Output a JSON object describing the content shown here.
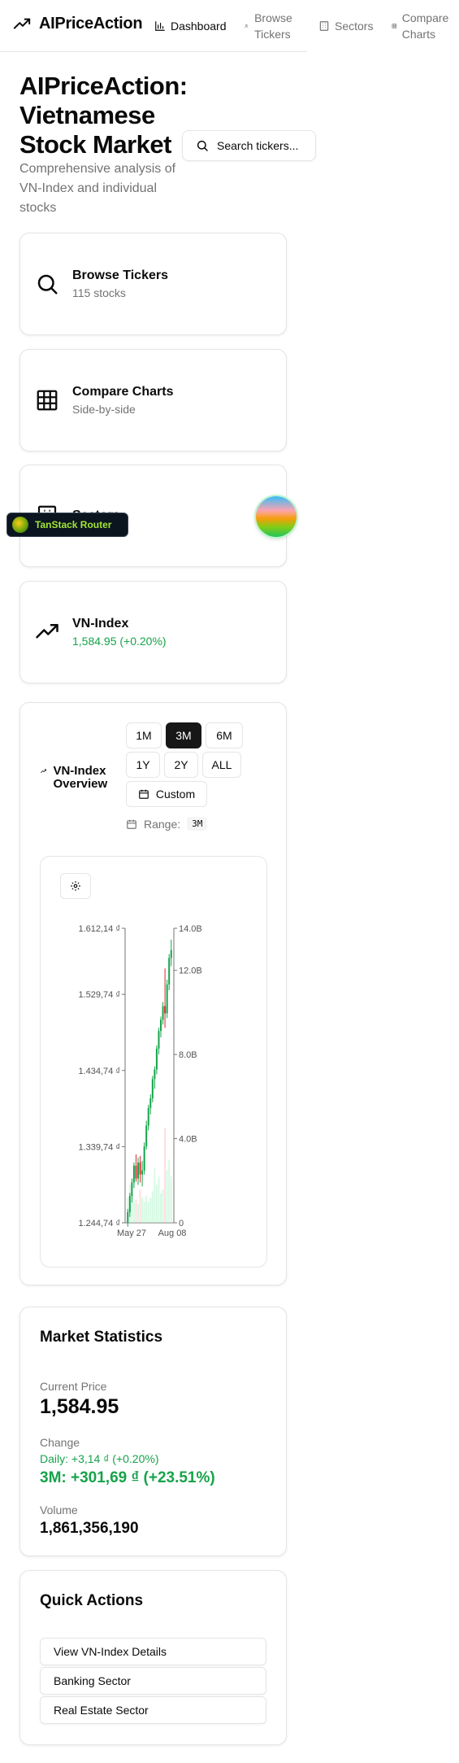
{
  "header": {
    "brand": "AIPriceAction",
    "nav": [
      {
        "label": "Dashboard",
        "icon": "bar-chart-icon"
      },
      {
        "label": "Browse Tickers",
        "icon": "users-icon"
      },
      {
        "label": "Sectors",
        "icon": "building-icon"
      },
      {
        "label": "Compare Charts",
        "icon": "grid-icon"
      }
    ]
  },
  "hero": {
    "title": "AIPriceAction: Vietnamese Stock Market",
    "subtitle": "Comprehensive analysis of VN-Index and individual stocks",
    "search_label": "Search tickers..."
  },
  "cards": {
    "browse": {
      "title": "Browse Tickers",
      "sub": "115 stocks"
    },
    "compare": {
      "title": "Compare Charts",
      "sub": "Side-by-side"
    },
    "sectors": {
      "title": "Sectors",
      "sub": ""
    },
    "vnindex": {
      "title": "VN-Index",
      "sub": "1,584.95 (+0.20%)"
    }
  },
  "devtools": {
    "tanstack": "TanStack Router"
  },
  "overview": {
    "title": "VN-Index Overview",
    "ranges": [
      "1M",
      "3M",
      "6M",
      "1Y",
      "2Y",
      "ALL"
    ],
    "active_range": "3M",
    "custom_label": "Custom",
    "range_label": "Range:",
    "range_value": "3M"
  },
  "chart_data": {
    "type": "candlestick",
    "y_ticks": [
      "1.612,14 ₫",
      "1.529,74 ₫",
      "1.434,74 ₫",
      "1.339,74 ₫",
      "1.244,74 ₫"
    ],
    "y_tick_values": [
      1612.14,
      1529.74,
      1434.74,
      1339.74,
      1244.74
    ],
    "volume_ticks": [
      "14.0B",
      "12.0B",
      "8.0B",
      "4.0B",
      "0"
    ],
    "volume_tick_values": [
      14,
      12,
      8,
      4,
      0
    ],
    "x_ticks": [
      "May 27",
      "Aug 08"
    ],
    "ylim": [
      1244.74,
      1612.14
    ],
    "volume_ylim": [
      0,
      14
    ],
    "candles": [
      {
        "o": 1245,
        "h": 1262,
        "l": 1240,
        "c": 1258,
        "v": 1.2
      },
      {
        "o": 1258,
        "h": 1282,
        "l": 1252,
        "c": 1278,
        "v": 1.8
      },
      {
        "o": 1278,
        "h": 1300,
        "l": 1270,
        "c": 1295,
        "v": 1.5
      },
      {
        "o": 1295,
        "h": 1320,
        "l": 1288,
        "c": 1316,
        "v": 1.0
      },
      {
        "o": 1316,
        "h": 1330,
        "l": 1296,
        "c": 1300,
        "v": 1.1
      },
      {
        "o": 1300,
        "h": 1326,
        "l": 1292,
        "c": 1320,
        "v": 0.9
      },
      {
        "o": 1320,
        "h": 1328,
        "l": 1295,
        "c": 1305,
        "v": 1.6
      },
      {
        "o": 1305,
        "h": 1322,
        "l": 1290,
        "c": 1310,
        "v": 1.2
      },
      {
        "o": 1310,
        "h": 1345,
        "l": 1305,
        "c": 1340,
        "v": 1.0
      },
      {
        "o": 1340,
        "h": 1372,
        "l": 1336,
        "c": 1366,
        "v": 1.3
      },
      {
        "o": 1366,
        "h": 1392,
        "l": 1360,
        "c": 1388,
        "v": 1.0
      },
      {
        "o": 1388,
        "h": 1405,
        "l": 1380,
        "c": 1400,
        "v": 1.2
      },
      {
        "o": 1400,
        "h": 1428,
        "l": 1395,
        "c": 1424,
        "v": 1.5
      },
      {
        "o": 1424,
        "h": 1440,
        "l": 1412,
        "c": 1436,
        "v": 2.6
      },
      {
        "o": 1436,
        "h": 1466,
        "l": 1430,
        "c": 1462,
        "v": 1.8
      },
      {
        "o": 1462,
        "h": 1488,
        "l": 1455,
        "c": 1484,
        "v": 2.2
      },
      {
        "o": 1484,
        "h": 1502,
        "l": 1476,
        "c": 1498,
        "v": 1.4
      },
      {
        "o": 1498,
        "h": 1520,
        "l": 1492,
        "c": 1515,
        "v": 1.6
      },
      {
        "o": 1515,
        "h": 1562,
        "l": 1488,
        "c": 1506,
        "v": 4.5
      },
      {
        "o": 1506,
        "h": 1548,
        "l": 1500,
        "c": 1542,
        "v": 2.5
      },
      {
        "o": 1542,
        "h": 1580,
        "l": 1535,
        "c": 1575,
        "v": 3.0
      },
      {
        "o": 1575,
        "h": 1598,
        "l": 1565,
        "c": 1585,
        "v": 2.2
      }
    ]
  },
  "stats": {
    "title": "Market Statistics",
    "current_price_label": "Current Price",
    "current_price": "1,584.95",
    "change_label": "Change",
    "daily": "Daily: +3,14 ₫ (+0.20%)",
    "period": "3M: +301,69 ₫ (+23.51%)",
    "volume_label": "Volume",
    "volume": "1,861,356,190"
  },
  "quick": {
    "title": "Quick Actions",
    "actions": [
      "View VN-Index Details",
      "Banking Sector",
      "Real Estate Sector"
    ]
  },
  "colors": {
    "up": "#16a34a",
    "down": "#dc2626",
    "accent": "#171717"
  }
}
